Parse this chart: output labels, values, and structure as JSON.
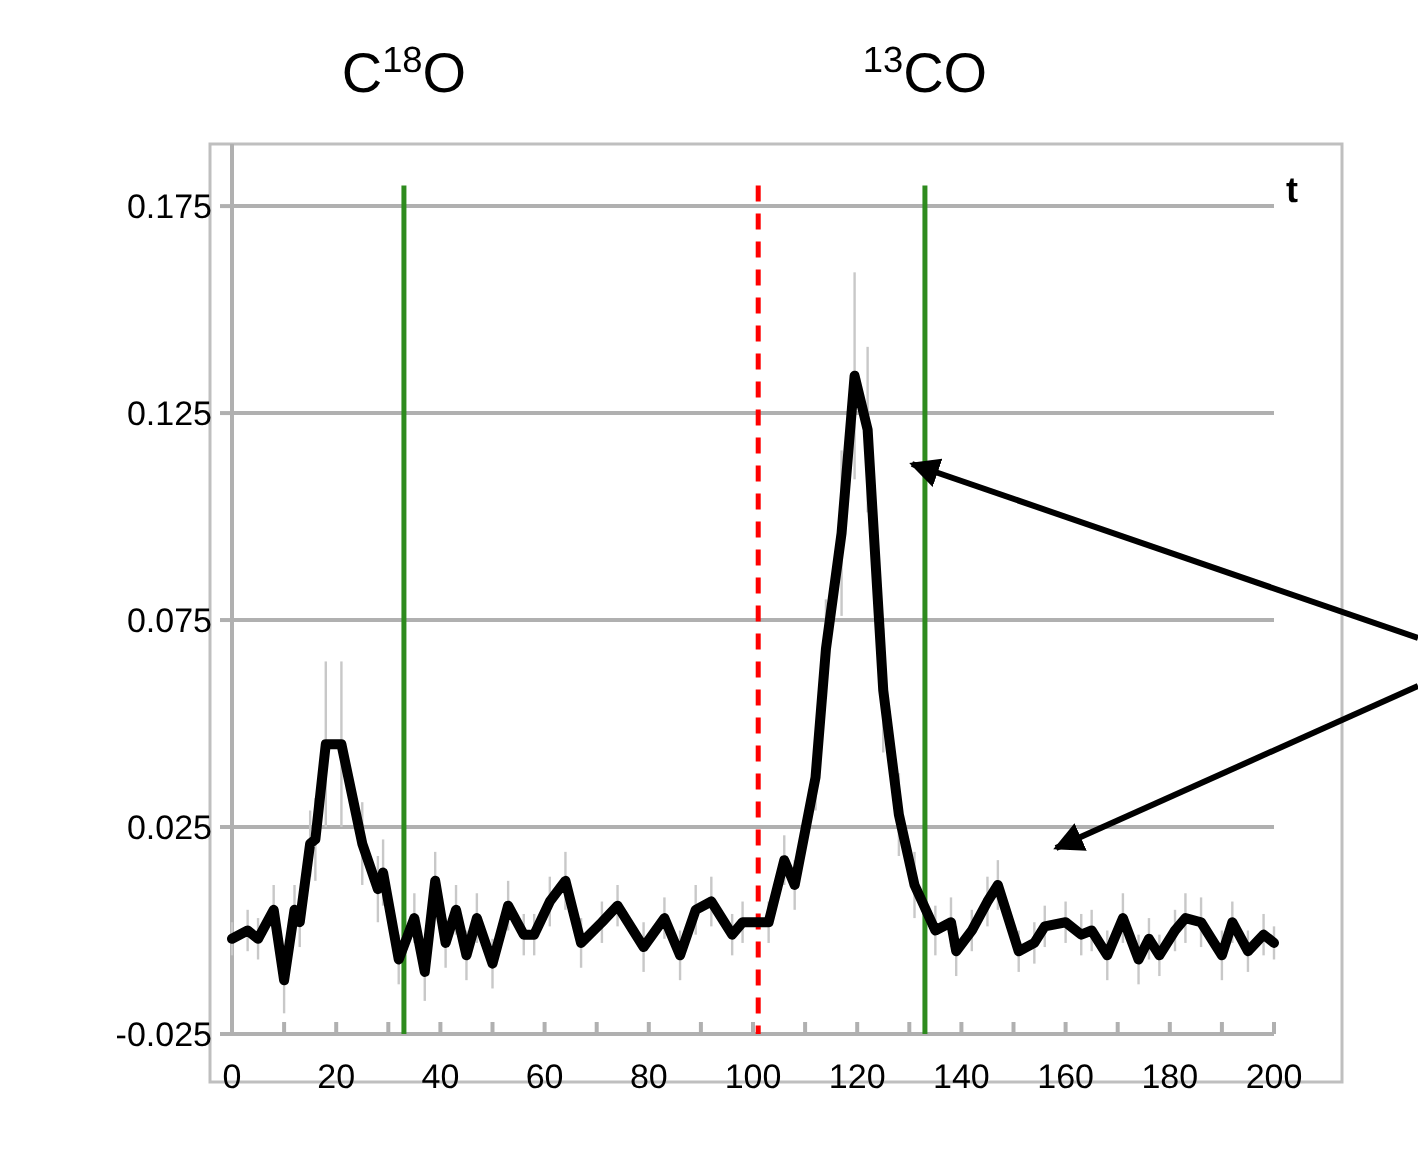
{
  "chart_data": {
    "type": "line",
    "x": [
      0,
      3,
      5,
      8,
      10,
      12,
      13,
      15,
      16,
      18,
      21,
      25,
      28,
      29,
      32,
      35,
      37,
      39,
      41,
      43,
      45,
      47,
      50,
      53,
      56,
      58,
      61,
      64,
      67,
      71,
      74,
      79,
      83,
      86,
      89,
      92,
      96,
      98,
      103,
      106,
      108,
      112,
      114,
      117,
      119.5,
      122,
      125,
      128,
      131,
      135,
      138,
      139,
      142,
      145,
      147,
      151,
      154,
      156,
      160,
      163,
      165,
      168,
      171,
      174,
      176,
      178,
      181,
      183,
      186,
      190,
      192,
      195,
      198,
      200
    ],
    "series": [
      {
        "color": "#000000",
        "values": [
          -0.002,
          0,
          -0.002,
          0.005,
          -0.012,
          0.005,
          0.002,
          0.021,
          0.022,
          0.045,
          0.045,
          0.021,
          0.01,
          0.014,
          -0.007,
          0.003,
          -0.01,
          0.012,
          -0.003,
          0.005,
          -0.006,
          0.003,
          -0.008,
          0.006,
          -0.001,
          -0.001,
          0.007,
          0.012,
          -0.003,
          0.002,
          0.006,
          -0.004,
          0.003,
          -0.006,
          0.005,
          0.007,
          -0.001,
          0.002,
          0.002,
          0.017,
          0.011,
          0.037,
          0.068,
          0.096,
          0.134,
          0.121,
          0.058,
          0.028,
          0.011,
          0,
          0.002,
          -0.005,
          0,
          0.007,
          0.011,
          -0.005,
          -0.003,
          0.001,
          0.002,
          -0.001,
          0,
          -0.006,
          0.003,
          -0.007,
          -0.002,
          -0.006,
          0,
          0.003,
          0.002,
          -0.006,
          0.002,
          -0.005,
          -0.001,
          -0.003
        ],
        "errors": [
          0.004,
          0.005,
          0.005,
          0.006,
          0.008,
          0.006,
          0.006,
          0.008,
          0.01,
          0.02,
          0.02,
          0.01,
          0.008,
          0.008,
          0.006,
          0.006,
          0.007,
          0.007,
          0.006,
          0.006,
          0.006,
          0.006,
          0.006,
          0.006,
          0.005,
          0.005,
          0.006,
          0.007,
          0.006,
          0.005,
          0.005,
          0.006,
          0.005,
          0.006,
          0.006,
          0.006,
          0.005,
          0.005,
          0.005,
          0.006,
          0.006,
          0.008,
          0.012,
          0.02,
          0.025,
          0.02,
          0.015,
          0.01,
          0.008,
          0.006,
          0.006,
          0.006,
          0.005,
          0.006,
          0.006,
          0.005,
          0.005,
          0.005,
          0.005,
          0.005,
          0.005,
          0.006,
          0.006,
          0.006,
          0.005,
          0.005,
          0.005,
          0.006,
          0.006,
          0.006,
          0.005,
          0.005,
          0.005,
          0.004
        ]
      }
    ],
    "xlim": [
      0,
      200
    ],
    "xticks": [
      0,
      {
        "value": 10,
        "label": null
      },
      20,
      {
        "value": 30,
        "label": null
      },
      40,
      {
        "value": 50,
        "label": null
      },
      60,
      {
        "value": 70,
        "label": null
      },
      80,
      {
        "value": 90,
        "label": null
      },
      100,
      {
        "value": 110,
        "label": null
      },
      120,
      {
        "value": 130,
        "label": null
      },
      140,
      {
        "value": 150,
        "label": null
      },
      160,
      {
        "value": 170,
        "label": null
      },
      180,
      {
        "value": 190,
        "label": null
      },
      200
    ],
    "ylim": [
      -0.025,
      0.19
    ],
    "yticks": [
      -0.025,
      0.025,
      0.075,
      0.125,
      0.175
    ],
    "grid": "y",
    "marker": "none",
    "line_style": "solid",
    "ref_lines": [
      {
        "axis": "x",
        "value": 33,
        "label": "C$^{18}$O",
        "color": "#2e8b1e",
        "line_style": "solid"
      },
      {
        "axis": "x",
        "value": 101,
        "color": "#ff0000",
        "line_style": "dashed"
      },
      {
        "axis": "x",
        "value": 133,
        "label": "$^{13}$CO",
        "color": "#2e8b1e",
        "line_style": "solid"
      }
    ],
    "annotations": [
      "t"
    ]
  }
}
